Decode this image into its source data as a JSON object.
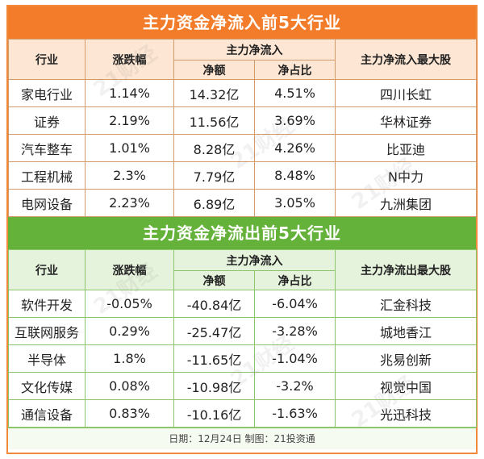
{
  "inflow": {
    "title": "主力资金净流入前5大行业",
    "headers": {
      "industry": "行业",
      "change": "涨跌幅",
      "net_group": "主力净流入",
      "amount": "净额",
      "ratio": "净占比",
      "top_stock": "主力净流入最大股"
    },
    "rows": [
      {
        "industry": "家电行业",
        "change": "1.14%",
        "amount": "14.32亿",
        "ratio": "4.51%",
        "top_stock": "四川长虹"
      },
      {
        "industry": "证券",
        "change": "2.19%",
        "amount": "11.56亿",
        "ratio": "3.69%",
        "top_stock": "华林证券"
      },
      {
        "industry": "汽车整车",
        "change": "1.01%",
        "amount": "8.28亿",
        "ratio": "4.26%",
        "top_stock": "比亚迪"
      },
      {
        "industry": "工程机械",
        "change": "2.3%",
        "amount": "7.79亿",
        "ratio": "8.48%",
        "top_stock": "N中力"
      },
      {
        "industry": "电网设备",
        "change": "2.23%",
        "amount": "6.89亿",
        "ratio": "3.05%",
        "top_stock": "九洲集团"
      }
    ]
  },
  "outflow": {
    "title": "主力资金净流出前5大行业",
    "headers": {
      "industry": "行业",
      "change": "涨跌幅",
      "net_group": "主力净流入",
      "amount": "净额",
      "ratio": "净占比",
      "top_stock": "主力净流出最大股"
    },
    "rows": [
      {
        "industry": "软件开发",
        "change": "-0.05%",
        "amount": "-40.84亿",
        "ratio": "-6.04%",
        "top_stock": "汇金科技"
      },
      {
        "industry": "互联网服务",
        "change": "0.29%",
        "amount": "-25.47亿",
        "ratio": "-3.28%",
        "top_stock": "城地香江"
      },
      {
        "industry": "半导体",
        "change": "1.8%",
        "amount": "-11.65亿",
        "ratio": "-1.04%",
        "top_stock": "兆易创新"
      },
      {
        "industry": "文化传媒",
        "change": "0.08%",
        "amount": "-10.98亿",
        "ratio": "-3.2%",
        "top_stock": "视觉中国"
      },
      {
        "industry": "通信设备",
        "change": "0.83%",
        "amount": "-10.16亿",
        "ratio": "-1.63%",
        "top_stock": "光迅科技"
      }
    ]
  },
  "footer": "日期：12月24日  制图：21投资通",
  "watermark": "21财经",
  "colors": {
    "inflow_banner": "#f27c2a",
    "outflow_banner": "#65b23a",
    "border": "#f08a3a"
  }
}
